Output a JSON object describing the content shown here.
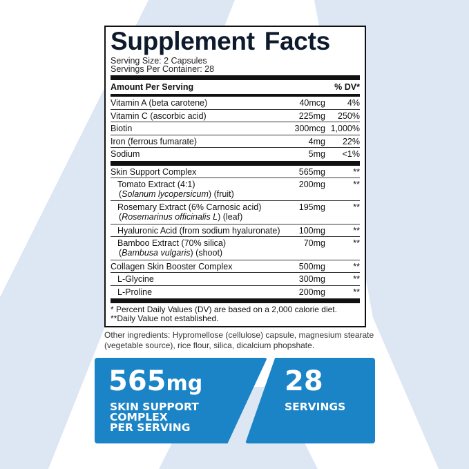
{
  "colors": {
    "accent": "#1b84c6",
    "background_shape": "#dde7f4",
    "title": "#0d1a2b"
  },
  "label": {
    "title": "Supplement Facts",
    "serving_size": "Serving Size: 2 Capsules",
    "servings_per_container": "Servings Per Container: 28",
    "header": {
      "amount": "Amount Per Serving",
      "dv": "% DV*"
    },
    "vitamins": [
      {
        "name": "Vitamin A (beta carotene)",
        "amount": "40mcg",
        "dv": "4%"
      },
      {
        "name": "Vitamin C (ascorbic acid)",
        "amount": "225mg",
        "dv": "250%"
      },
      {
        "name": "Biotin",
        "amount": "300mcg",
        "dv": "1,000%"
      },
      {
        "name": "Iron (ferrous fumarate)",
        "amount": "4mg",
        "dv": "22%"
      },
      {
        "name": "Sodium",
        "amount": "5mg",
        "dv": "<1%"
      }
    ],
    "blends": [
      {
        "name": "Skin Support Complex",
        "sub": "",
        "sub2": "",
        "amount": "565mg",
        "dv": "**",
        "indent": false
      },
      {
        "name": "Tomato Extract (4:1)",
        "sub": "Solanum lycopersicum",
        "sub2": " (fruit)",
        "amount": "200mg",
        "dv": "**",
        "indent": true
      },
      {
        "name": "Rosemary Extract (6% Carnosic acid)",
        "sub": "Rosemarinus officinalis L",
        "sub2": " (leaf)",
        "amount": "195mg",
        "dv": "**",
        "indent": true
      },
      {
        "name": "Hyaluronic Acid (from sodium hyaluronate)",
        "sub": "",
        "sub2": "",
        "amount": "100mg",
        "dv": "**",
        "indent": true
      },
      {
        "name": "Bamboo Extract (70% silica)",
        "sub": "Bambusa vulgaris",
        "sub2": " (shoot)",
        "amount": "70mg",
        "dv": "**",
        "indent": true
      },
      {
        "name": "Collagen Skin Booster Complex",
        "sub": "",
        "sub2": "",
        "amount": "500mg",
        "dv": "**",
        "indent": false
      },
      {
        "name": "L-Glycine",
        "sub": "",
        "sub2": "",
        "amount": "300mg",
        "dv": "**",
        "indent": true
      },
      {
        "name": "L-Proline",
        "sub": "",
        "sub2": "",
        "amount": "200mg",
        "dv": "**",
        "indent": true
      }
    ],
    "footnote1": "* Percent Daily Values (DV) are based on a 2,000 calorie diet.",
    "footnote2": "**Daily Value not established."
  },
  "other_ingredients": "Other ingredients: Hypromellose (cellulose) capsule, magnesium stearate (vegetable source), rice flour, silica, dicalcium phopshate.",
  "callouts": {
    "left": {
      "number": "565",
      "unit": "mg",
      "line1": "SKIN  SUPPORT",
      "line2": "COMPLEX",
      "line3": "PER SERVING"
    },
    "right": {
      "number": "28",
      "line1": "SERVINGS"
    }
  }
}
